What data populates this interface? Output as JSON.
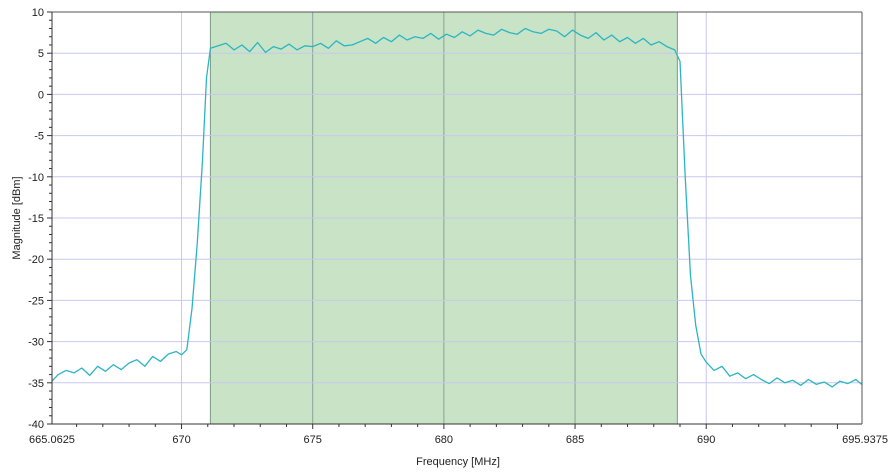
{
  "chart_data": {
    "type": "line",
    "title": "",
    "xlabel": "Frequency [MHz]",
    "ylabel": "Magnitude [dBm]",
    "xlim": [
      665.0625,
      695.9375
    ],
    "ylim": [
      -40,
      10
    ],
    "x_tick_labels": [
      "665.0625",
      "670",
      "675",
      "680",
      "685",
      "690",
      "695.9375"
    ],
    "x_tick_values": [
      665.0625,
      670,
      675,
      680,
      685,
      690,
      695.9375
    ],
    "y_tick_labels": [
      "10",
      "5",
      "0",
      "-5",
      "-10",
      "-15",
      "-20",
      "-25",
      "-30",
      "-35",
      "-40"
    ],
    "y_tick_values": [
      10,
      5,
      0,
      -5,
      -10,
      -15,
      -20,
      -25,
      -30,
      -35,
      -40
    ],
    "grid": true,
    "highlight_band": {
      "x_start": 671.1,
      "x_end": 688.9,
      "color": "#c9e3c6"
    },
    "colors": {
      "line": "#2bb5c2",
      "grid": "#c8c8ee",
      "band_grid": "#8aa09a",
      "axis": "#333333"
    },
    "series": [
      {
        "color": "#2bb5c2",
        "x": [
          665.06,
          665.3,
          665.6,
          665.9,
          666.2,
          666.5,
          666.8,
          667.1,
          667.4,
          667.7,
          668.0,
          668.3,
          668.6,
          668.9,
          669.2,
          669.5,
          669.8,
          670.0,
          670.2,
          670.4,
          670.6,
          670.8,
          670.95,
          671.1,
          671.4,
          671.7,
          672.0,
          672.3,
          672.6,
          672.9,
          673.2,
          673.5,
          673.8,
          674.1,
          674.4,
          674.7,
          675.0,
          675.3,
          675.6,
          675.9,
          676.2,
          676.5,
          676.8,
          677.1,
          677.4,
          677.7,
          678.0,
          678.3,
          678.6,
          678.9,
          679.2,
          679.5,
          679.8,
          680.1,
          680.4,
          680.7,
          681.0,
          681.3,
          681.6,
          681.9,
          682.2,
          682.5,
          682.8,
          683.1,
          683.4,
          683.7,
          684.0,
          684.3,
          684.6,
          684.9,
          685.2,
          685.5,
          685.8,
          686.1,
          686.4,
          686.7,
          687.0,
          687.3,
          687.6,
          687.9,
          688.2,
          688.5,
          688.8,
          689.0,
          689.2,
          689.4,
          689.6,
          689.8,
          690.0,
          690.3,
          690.6,
          690.9,
          691.2,
          691.5,
          691.8,
          692.1,
          692.4,
          692.7,
          693.0,
          693.3,
          693.6,
          693.9,
          694.2,
          694.5,
          694.8,
          695.1,
          695.4,
          695.7,
          695.93
        ],
        "y": [
          -34.8,
          -34.0,
          -33.5,
          -33.8,
          -33.2,
          -34.1,
          -33.0,
          -33.6,
          -32.8,
          -33.4,
          -32.6,
          -32.2,
          -33.0,
          -31.8,
          -32.4,
          -31.5,
          -31.2,
          -31.6,
          -31.0,
          -26.0,
          -18.0,
          -8.0,
          2.0,
          5.6,
          5.9,
          6.2,
          5.4,
          6.0,
          5.2,
          6.3,
          5.1,
          5.8,
          5.5,
          6.1,
          5.4,
          5.9,
          5.8,
          6.2,
          5.6,
          6.5,
          5.9,
          6.0,
          6.4,
          6.8,
          6.2,
          6.9,
          6.4,
          7.2,
          6.6,
          7.0,
          6.8,
          7.4,
          6.7,
          7.3,
          6.9,
          7.6,
          7.1,
          7.8,
          7.4,
          7.2,
          7.9,
          7.5,
          7.3,
          8.0,
          7.6,
          7.4,
          7.9,
          7.7,
          7.0,
          7.8,
          7.2,
          6.8,
          7.5,
          6.6,
          7.2,
          6.4,
          6.9,
          6.2,
          6.8,
          6.0,
          6.4,
          5.8,
          5.4,
          4.0,
          -10.0,
          -22.0,
          -28.0,
          -31.5,
          -32.5,
          -33.5,
          -33.0,
          -34.2,
          -33.8,
          -34.5,
          -34.0,
          -34.6,
          -35.1,
          -34.4,
          -35.0,
          -34.7,
          -35.3,
          -34.6,
          -35.2,
          -34.9,
          -35.5,
          -34.8,
          -35.1,
          -34.6,
          -35.2
        ]
      }
    ]
  }
}
